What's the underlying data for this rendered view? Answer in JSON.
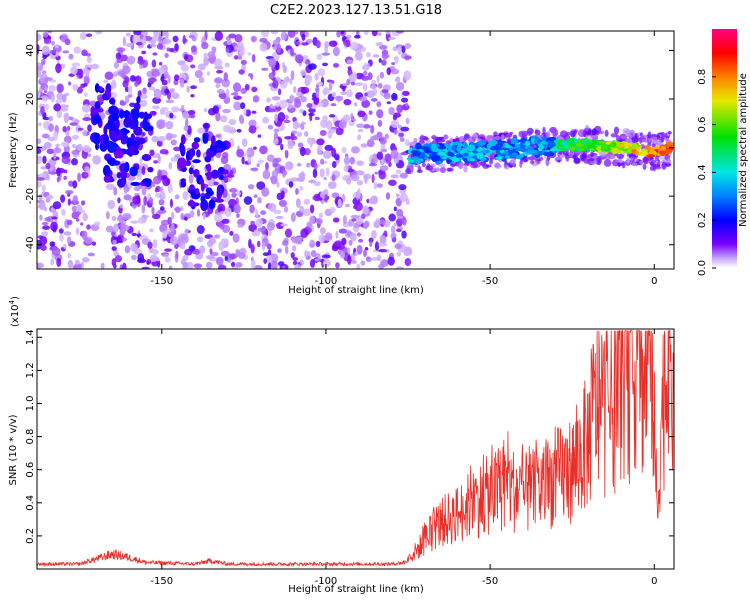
{
  "figure_title": "C2E2.2023.127.13.51.G18",
  "colors": {
    "snr_line": "#e8302a",
    "axis": "#000000",
    "colormap": [
      "#7a00ff",
      "#0000ff",
      "#0080ff",
      "#00e5e5",
      "#00e000",
      "#e8e800",
      "#ff8000",
      "#ff0000",
      "#ff0080"
    ]
  },
  "chart_data": [
    {
      "type": "heatmap",
      "name": "spectrogram",
      "title": "C2E2.2023.127.13.51.G18",
      "xlabel": "Height of straight line (km)",
      "ylabel": "Frequency (Hz)",
      "xlim": [
        -188,
        6
      ],
      "ylim": [
        -50,
        48
      ],
      "xticks": [
        -150,
        -100,
        -50,
        0
      ],
      "xtick_labels": [
        "-150",
        "-100",
        "-50",
        "0"
      ],
      "yticks": [
        -40,
        -20,
        0,
        20,
        40
      ],
      "ytick_labels": [
        "-40",
        "-20",
        "0",
        "20",
        "40"
      ],
      "colorbar": {
        "label": "Normalized spectral amplitude",
        "range": [
          0,
          1
        ],
        "ticks": [
          0.0,
          0.2,
          0.4,
          0.6,
          0.8
        ],
        "tick_labels": [
          "0.0",
          "0.2",
          "0.4",
          "0.6",
          "0.8"
        ]
      },
      "regions": [
        {
          "name": "noise",
          "x_range": [
            -188,
            -75
          ],
          "freq_range": [
            -50,
            48
          ],
          "amplitude_range": [
            0.0,
            0.15
          ]
        },
        {
          "name": "signal-trace",
          "x_range": [
            -75,
            6
          ],
          "freq_range": [
            -6,
            6
          ],
          "amplitude_range": [
            0.25,
            0.95
          ]
        }
      ],
      "trace": {
        "x": [
          -75,
          -60,
          -45,
          -30,
          -20,
          -10,
          0,
          5
        ],
        "freq": [
          -3,
          -2,
          -1,
          1,
          1,
          0,
          -2,
          0
        ]
      },
      "noise_blobs": {
        "x": [
          -164,
          -160,
          -137
        ],
        "freq": [
          10,
          0,
          -10
        ]
      }
    },
    {
      "type": "line",
      "name": "snr",
      "xlabel": "Height of straight line (km)",
      "ylabel": "SNR (10 * v/v)",
      "y_multiplier": "(x10",
      "y_multiplier_exp": "4",
      "y_multiplier_close": ")",
      "xlim": [
        -188,
        6
      ],
      "ylim": [
        0,
        1.45
      ],
      "xticks": [
        -150,
        -100,
        -50,
        0
      ],
      "xtick_labels": [
        "-150",
        "-100",
        "-50",
        "0"
      ],
      "yticks": [
        0.2,
        0.4,
        0.6,
        0.8,
        1.0,
        1.2,
        1.4
      ],
      "ytick_labels": [
        "0.2",
        "0.4",
        "0.6",
        "0.8",
        "1.0",
        "1.2",
        "1.4"
      ],
      "series": [
        {
          "name": "SNR",
          "x": [
            -188,
            -175,
            -170,
            -165,
            -160,
            -155,
            -140,
            -135,
            -130,
            -100,
            -80,
            -76,
            -72,
            -68,
            -65,
            -60,
            -55,
            -50,
            -45,
            -40,
            -35,
            -30,
            -25,
            -20,
            -18,
            -15,
            -12,
            -10,
            -8,
            -5,
            -3,
            -1,
            0,
            1,
            2,
            4,
            6
          ],
          "y": [
            0.03,
            0.03,
            0.06,
            0.09,
            0.07,
            0.04,
            0.03,
            0.05,
            0.03,
            0.03,
            0.03,
            0.04,
            0.12,
            0.22,
            0.28,
            0.33,
            0.4,
            0.45,
            0.5,
            0.45,
            0.48,
            0.55,
            0.6,
            0.78,
            1.0,
            0.95,
            1.0,
            1.2,
            1.1,
            1.3,
            1.1,
            1.4,
            0.8,
            0.3,
            0.9,
            1.2,
            1.0
          ]
        }
      ]
    }
  ]
}
